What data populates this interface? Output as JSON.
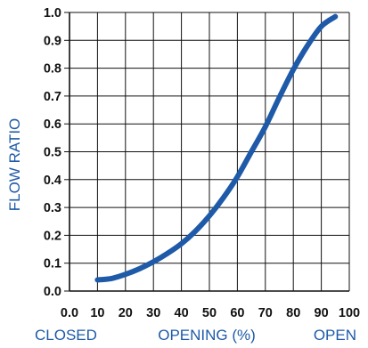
{
  "chart_data": {
    "type": "line",
    "xlabel": "OPENING (%)",
    "ylabel": "FLOW RATIO",
    "x_end_labels": {
      "left": "CLOSED",
      "right": "OPEN"
    },
    "xlim": [
      0,
      100
    ],
    "ylim": [
      0,
      1
    ],
    "x_ticks": [
      0,
      10,
      20,
      30,
      40,
      50,
      60,
      70,
      80,
      90,
      100
    ],
    "x_tick_labels": [
      "0.0",
      "10",
      "20",
      "30",
      "40",
      "50",
      "60",
      "70",
      "80",
      "90",
      "100"
    ],
    "y_ticks": [
      0,
      0.1,
      0.2,
      0.3,
      0.4,
      0.5,
      0.6,
      0.7,
      0.8,
      0.9,
      1
    ],
    "y_tick_labels": [
      "0.0",
      "0.1",
      "0.2",
      "0.3",
      "0.4",
      "0.5",
      "0.6",
      "0.7",
      "0.8",
      "0.9",
      "1.0"
    ],
    "grid": true,
    "series": [
      {
        "x": [
          10,
          15,
          20,
          25,
          30,
          35,
          40,
          45,
          50,
          55,
          60,
          65,
          70,
          75,
          80,
          85,
          90,
          95
        ],
        "y": [
          0.04,
          0.045,
          0.06,
          0.08,
          0.105,
          0.135,
          0.17,
          0.215,
          0.27,
          0.335,
          0.41,
          0.5,
          0.59,
          0.695,
          0.795,
          0.88,
          0.95,
          0.985
        ],
        "color": "#1e5aa8"
      }
    ]
  },
  "colors": {
    "curve": "#1e5aa8",
    "axis_titles": "#1e5aa8",
    "grid": "#111111",
    "tick_labels": "#111111"
  }
}
